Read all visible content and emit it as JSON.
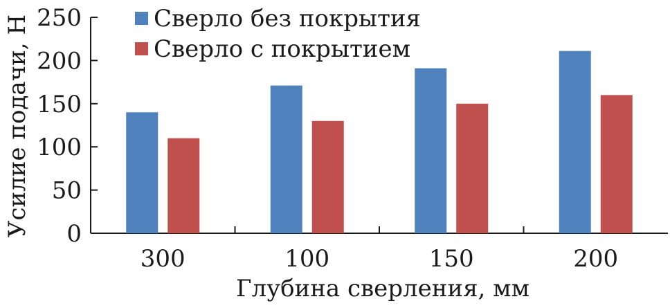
{
  "chart_data": {
    "type": "bar",
    "title": "",
    "xlabel": "Глубина сверления, мм",
    "ylabel": "Усилие подачи, Н",
    "categories": [
      "300",
      "100",
      "150",
      "200"
    ],
    "ylim": [
      0,
      250
    ],
    "yticks": [
      "0",
      "50",
      "100",
      "150",
      "200",
      "250"
    ],
    "grid": false,
    "legend_position": "top-left",
    "series": [
      {
        "name": "Сверло без покрытия",
        "color": "#4f81bd",
        "values": [
          140,
          171,
          191,
          211
        ]
      },
      {
        "name": "Сверло с покрытием",
        "color": "#c0504d",
        "values": [
          110,
          130,
          150,
          160
        ]
      }
    ]
  }
}
